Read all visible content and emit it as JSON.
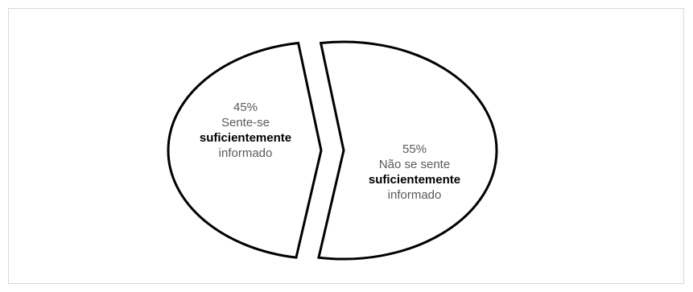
{
  "chart_data": {
    "type": "pie",
    "slices": [
      {
        "value": 45,
        "percent_label": "45%",
        "label_lines": [
          "Sente-se",
          "suficientemente",
          "informado"
        ],
        "bold_line": 1
      },
      {
        "value": 55,
        "percent_label": "55%",
        "label_lines": [
          "Não se sente",
          "suficientemente",
          "informado"
        ],
        "bold_line": 1
      }
    ],
    "exploded": true,
    "colors": {
      "fill": "#ffffff",
      "stroke": "#000000",
      "frame": "#d9d9d9"
    }
  }
}
